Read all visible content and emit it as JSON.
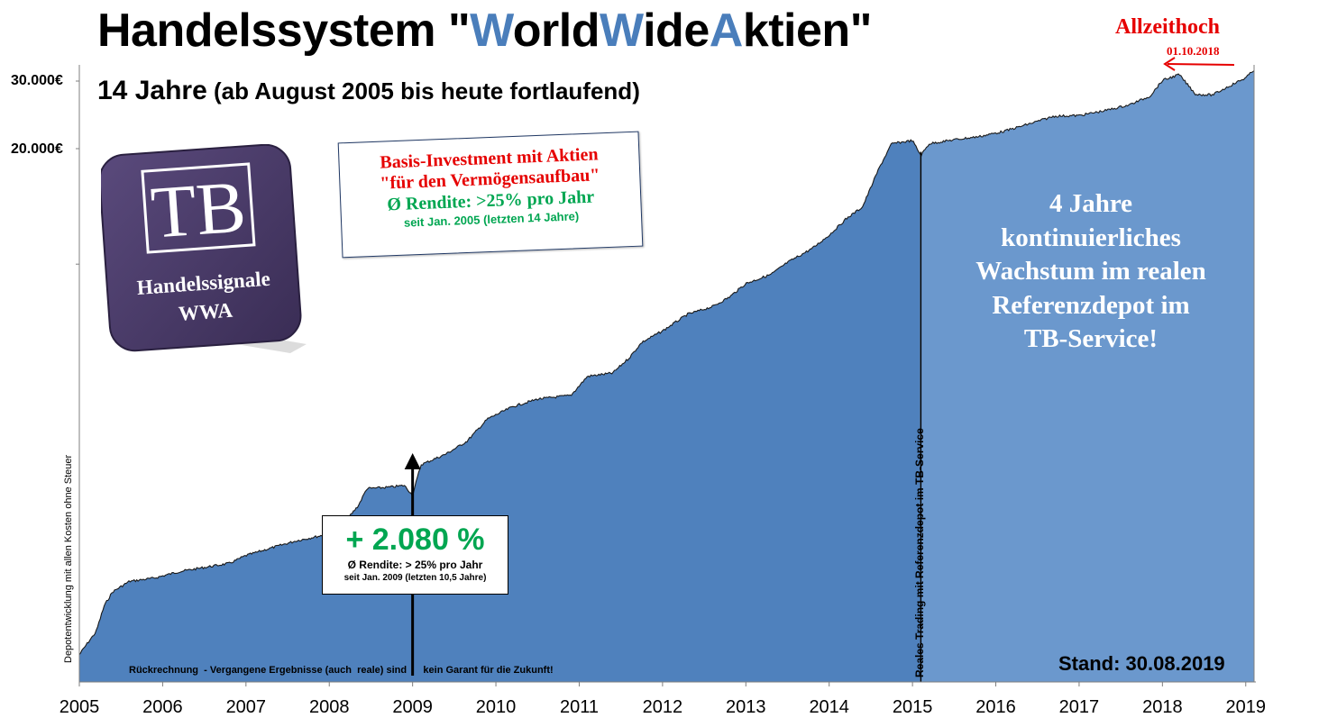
{
  "title": {
    "prefix": "Handelssystem \"",
    "w1": "W",
    "orld": "orld",
    "w2": "W",
    "ide": "ide",
    "a": "A",
    "ktien": "ktien",
    "suffix": "\""
  },
  "subtitle": {
    "main": "14 Jahre",
    "detail": " (ab August 2005 bis heute fortlaufend)"
  },
  "logo": {
    "letters": "TB",
    "line1": "Handelssignale",
    "line2": "WWA"
  },
  "basis_box": {
    "line1": "Basis-Investment mit Aktien",
    "line2": "\"für den Vermögensaufbau\"",
    "line3": "Ø Rendite: >25% pro Jahr",
    "line4": "seit Jan. 2005 (letzten 14 Jahre)"
  },
  "performance_box": {
    "value": "+ 2.080 %",
    "line2": "Ø Rendite: > 25% pro Jahr",
    "line3": "seit Jan. 2009 (letzten 10,5 Jahre)"
  },
  "growth_text": {
    "line1": "4 Jahre",
    "line2": "kontinuierliches",
    "line3": "Wachstum im realen",
    "line4": "Referenzdepot im",
    "line5": "TB-Service!"
  },
  "stand": "Stand: 30.08.2019",
  "disclaimer": "Rückrechnung  - Vergangene Ergebnisse (auch  reale) sind      kein Garant für die Zukunft!",
  "vertical_label": "Reales Trading mit Referenzdepot  im TB-Service",
  "allzeithoch": {
    "label": "Allzeithoch",
    "date": "01.10.2018"
  },
  "colors": {
    "accent_title": "#4a7ebb",
    "area_backtest": "#4f81bd",
    "area_real": "#6b98cd",
    "red": "#e60000",
    "green": "#00a651",
    "logo_purple": "#483a66"
  },
  "chart_data": {
    "type": "area",
    "title": "",
    "ylabel": "Depotentwicklung mit allen Kosten ohne Steuer",
    "xlabel": "",
    "y_scale": "log",
    "y_ticks": [
      {
        "value": 30000,
        "label": "30.000€"
      },
      {
        "value": 20000,
        "label": "20.000€"
      }
    ],
    "x_tick_labels": [
      "2005",
      "2006",
      "2007",
      "2008",
      "2009",
      "2010",
      "2011",
      "2012",
      "2013",
      "2014",
      "2015",
      "2016",
      "2017",
      "2018",
      "2019"
    ],
    "grid": false,
    "regions": [
      {
        "name": "Rückrechnung",
        "from": 2005.0,
        "to": 2015.1
      },
      {
        "name": "Reales Trading mit Referenzdepot im TB-Service",
        "from": 2015.1,
        "to": 2019.1
      }
    ],
    "series": [
      {
        "x": [
          2005.0,
          2005.1,
          2005.2,
          2005.3,
          2005.4,
          2005.6,
          2005.9,
          2006.2,
          2006.5,
          2006.8,
          2007.0,
          2007.3,
          2007.6,
          2007.9,
          2008.1,
          2008.35,
          2008.45,
          2008.7,
          2008.9,
          2009.0,
          2009.1,
          2009.4,
          2009.65,
          2009.9,
          2010.2,
          2010.5,
          2010.9,
          2011.1,
          2011.4,
          2011.6,
          2011.75,
          2012.0,
          2012.3,
          2012.6,
          2012.8,
          2013.0,
          2013.3,
          2013.5,
          2013.8,
          2014.0,
          2014.2,
          2014.4,
          2014.6,
          2014.75,
          2015.0,
          2015.1,
          2015.2,
          2015.5,
          2015.8,
          2016.1,
          2016.4,
          2016.7,
          2017.0,
          2017.3,
          2017.6,
          2017.85,
          2018.0,
          2018.2,
          2018.4,
          2018.6,
          2018.8,
          2019.0,
          2019.1
        ],
        "y": [
          960,
          1030,
          1100,
          1290,
          1400,
          1490,
          1520,
          1580,
          1620,
          1660,
          1740,
          1820,
          1900,
          1960,
          2020,
          2350,
          2600,
          2620,
          2650,
          2500,
          3000,
          3200,
          3450,
          3950,
          4250,
          4450,
          4550,
          5100,
          5200,
          5700,
          6250,
          6700,
          7400,
          7750,
          8200,
          8900,
          9400,
          10100,
          11000,
          11900,
          13100,
          14100,
          17800,
          20600,
          21000,
          19200,
          20600,
          21100,
          21500,
          22200,
          23200,
          24300,
          24400,
          25100,
          26000,
          27400,
          30100,
          31200,
          27700,
          27600,
          29100,
          30600,
          32100
        ]
      }
    ]
  }
}
